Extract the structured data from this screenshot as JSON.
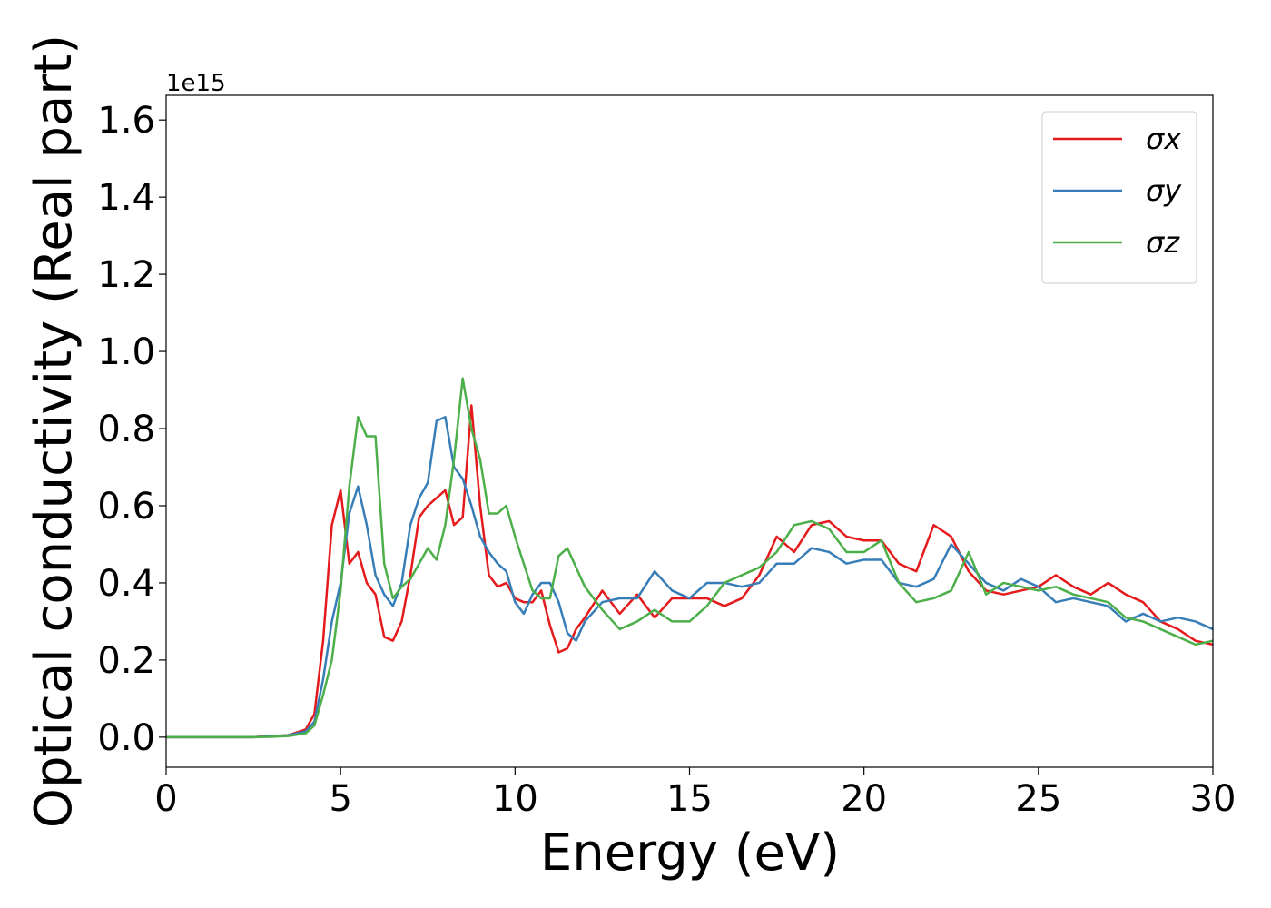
{
  "chart_data": {
    "type": "line",
    "x_label": "Energy (eV)",
    "y_label": "Optical conductivity (Real part)",
    "y_offset_label": "1e15",
    "xlim": [
      0,
      30
    ],
    "ylim": [
      -0.078,
      1.664
    ],
    "xticks": [
      0,
      5,
      10,
      15,
      20,
      25,
      30
    ],
    "yticks": [
      {
        "value": 0,
        "label": "0.0"
      },
      {
        "value": 0.2,
        "label": "0.2"
      },
      {
        "value": 0.4,
        "label": "0.4"
      },
      {
        "value": 0.6,
        "label": "0.6"
      },
      {
        "value": 0.8,
        "label": "0.8"
      },
      {
        "value": 1,
        "label": "1.0"
      },
      {
        "value": 1.2,
        "label": "1.2"
      },
      {
        "value": 1.4,
        "label": "1.4"
      },
      {
        "value": 1.6,
        "label": "1.6"
      }
    ],
    "grid": false,
    "legend": "upper right",
    "x": [
      0,
      0.5,
      1,
      1.5,
      2,
      2.5,
      3,
      3.5,
      4,
      4.25,
      4.5,
      4.75,
      5,
      5.25,
      5.5,
      5.75,
      6,
      6.25,
      6.5,
      6.75,
      7,
      7.25,
      7.5,
      7.75,
      8,
      8.25,
      8.5,
      8.75,
      9,
      9.25,
      9.5,
      9.75,
      10,
      10.25,
      10.5,
      10.75,
      11,
      11.25,
      11.5,
      11.75,
      12,
      12.5,
      13,
      13.5,
      14,
      14.5,
      15,
      15.5,
      16,
      16.5,
      17,
      17.5,
      18,
      18.5,
      19,
      19.5,
      20,
      20.5,
      21,
      21.5,
      22,
      22.5,
      23,
      23.5,
      24,
      24.5,
      25,
      25.5,
      26,
      26.5,
      27,
      27.5,
      28,
      28.5,
      29,
      29.5,
      30
    ],
    "series": [
      {
        "name": "σx",
        "color": "#e41a1c",
        "values": [
          0,
          0,
          0,
          0,
          0,
          0,
          0.003,
          0.005,
          0.02,
          0.06,
          0.25,
          0.55,
          0.64,
          0.45,
          0.48,
          0.4,
          0.37,
          0.26,
          0.25,
          0.3,
          0.42,
          0.57,
          0.6,
          0.62,
          0.64,
          0.55,
          0.57,
          0.86,
          0.6,
          0.42,
          0.39,
          0.4,
          0.36,
          0.35,
          0.35,
          0.38,
          0.29,
          0.22,
          0.23,
          0.28,
          0.31,
          0.38,
          0.32,
          0.37,
          0.31,
          0.36,
          0.36,
          0.36,
          0.34,
          0.36,
          0.42,
          0.52,
          0.48,
          0.55,
          0.56,
          0.52,
          0.51,
          0.51,
          0.45,
          0.43,
          0.55,
          0.52,
          0.43,
          0.38,
          0.37,
          0.38,
          0.39,
          0.42,
          0.39,
          0.37,
          0.4,
          0.37,
          0.35,
          0.3,
          0.28,
          0.25,
          0.24
        ]
      },
      {
        "name": "σy",
        "color": "#377eb8",
        "values": [
          0,
          0,
          0,
          0,
          0,
          0,
          0.002,
          0.005,
          0.015,
          0.04,
          0.15,
          0.3,
          0.4,
          0.58,
          0.65,
          0.55,
          0.42,
          0.37,
          0.34,
          0.4,
          0.55,
          0.62,
          0.66,
          0.82,
          0.83,
          0.7,
          0.67,
          0.6,
          0.52,
          0.48,
          0.45,
          0.43,
          0.35,
          0.32,
          0.37,
          0.4,
          0.4,
          0.35,
          0.27,
          0.25,
          0.3,
          0.35,
          0.36,
          0.36,
          0.43,
          0.38,
          0.36,
          0.4,
          0.4,
          0.39,
          0.4,
          0.45,
          0.45,
          0.49,
          0.48,
          0.45,
          0.46,
          0.46,
          0.4,
          0.39,
          0.41,
          0.5,
          0.45,
          0.4,
          0.38,
          0.41,
          0.39,
          0.35,
          0.36,
          0.35,
          0.34,
          0.3,
          0.32,
          0.3,
          0.31,
          0.3,
          0.28
        ]
      },
      {
        "name": "σz",
        "color": "#4daf4a",
        "values": [
          0,
          0,
          0,
          0,
          0,
          0,
          0.001,
          0.003,
          0.01,
          0.03,
          0.11,
          0.2,
          0.38,
          0.65,
          0.83,
          0.78,
          0.78,
          0.45,
          0.36,
          0.39,
          0.41,
          0.45,
          0.49,
          0.46,
          0.55,
          0.72,
          0.93,
          0.8,
          0.72,
          0.58,
          0.58,
          0.6,
          0.52,
          0.45,
          0.38,
          0.36,
          0.36,
          0.47,
          0.49,
          0.44,
          0.39,
          0.33,
          0.28,
          0.3,
          0.33,
          0.3,
          0.3,
          0.34,
          0.4,
          0.42,
          0.44,
          0.48,
          0.55,
          0.56,
          0.54,
          0.48,
          0.48,
          0.51,
          0.4,
          0.35,
          0.36,
          0.38,
          0.48,
          0.37,
          0.4,
          0.39,
          0.38,
          0.39,
          0.37,
          0.36,
          0.35,
          0.31,
          0.3,
          0.28,
          0.26,
          0.24,
          0.25
        ]
      }
    ]
  }
}
